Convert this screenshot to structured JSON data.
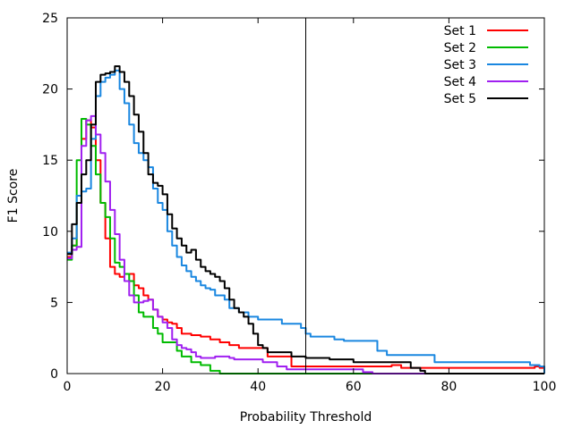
{
  "chart_data": {
    "type": "line",
    "title": "",
    "xlabel": "Probability Threshold",
    "ylabel": "F1 Score",
    "xlim": [
      0,
      100
    ],
    "ylim": [
      0,
      25
    ],
    "xticks": [
      "0",
      "20",
      "40",
      "60",
      "80",
      "100"
    ],
    "yticks": [
      "0",
      "5",
      "10",
      "15",
      "20",
      "25"
    ],
    "grid": false,
    "legend_position": "top-right",
    "vertical_reference_x": 50,
    "series": [
      {
        "name": "Set 1",
        "color": "#ff0000",
        "points": [
          [
            0,
            8.2
          ],
          [
            1,
            9
          ],
          [
            2,
            12
          ],
          [
            3,
            16.5
          ],
          [
            4,
            17.8
          ],
          [
            5,
            17.3
          ],
          [
            6,
            15
          ],
          [
            7,
            12
          ],
          [
            8,
            9.5
          ],
          [
            9,
            7.5
          ],
          [
            10,
            7
          ],
          [
            11,
            6.8
          ],
          [
            12,
            7
          ],
          [
            13,
            7
          ],
          [
            14,
            6.2
          ],
          [
            15,
            6
          ],
          [
            16,
            5.5
          ],
          [
            17,
            5.2
          ],
          [
            18,
            4.5
          ],
          [
            19,
            4
          ],
          [
            20,
            3.8
          ],
          [
            21,
            3.6
          ],
          [
            22,
            3.5
          ],
          [
            23,
            3.2
          ],
          [
            24,
            2.8
          ],
          [
            26,
            2.7
          ],
          [
            28,
            2.6
          ],
          [
            30,
            2.4
          ],
          [
            32,
            2.2
          ],
          [
            34,
            2
          ],
          [
            36,
            1.8
          ],
          [
            40,
            1.8
          ],
          [
            42,
            1.2
          ],
          [
            45,
            1.2
          ],
          [
            47,
            0.5
          ],
          [
            60,
            0.5
          ],
          [
            68,
            0.6
          ],
          [
            70,
            0.4
          ],
          [
            98,
            0.5
          ],
          [
            99,
            0.4
          ],
          [
            100,
            0
          ]
        ]
      },
      {
        "name": "Set 2",
        "color": "#00bb00",
        "points": [
          [
            0,
            8
          ],
          [
            1,
            9
          ],
          [
            2,
            15
          ],
          [
            3,
            17.9
          ],
          [
            4,
            17.5
          ],
          [
            5,
            16
          ],
          [
            6,
            14
          ],
          [
            7,
            12
          ],
          [
            8,
            11
          ],
          [
            9,
            9.5
          ],
          [
            10,
            7.8
          ],
          [
            11,
            7.5
          ],
          [
            12,
            7
          ],
          [
            13,
            6.5
          ],
          [
            14,
            5.5
          ],
          [
            15,
            4.3
          ],
          [
            16,
            4
          ],
          [
            17,
            4
          ],
          [
            18,
            3.2
          ],
          [
            19,
            2.8
          ],
          [
            20,
            2.2
          ],
          [
            22,
            2.2
          ],
          [
            23,
            1.6
          ],
          [
            24,
            1.2
          ],
          [
            26,
            0.8
          ],
          [
            28,
            0.6
          ],
          [
            30,
            0.2
          ],
          [
            32,
            0
          ],
          [
            100,
            0
          ]
        ]
      },
      {
        "name": "Set 3",
        "color": "#1a87e0",
        "points": [
          [
            0,
            8.5
          ],
          [
            1,
            9.5
          ],
          [
            2,
            12.5
          ],
          [
            3,
            12.8
          ],
          [
            4,
            13
          ],
          [
            5,
            16.5
          ],
          [
            6,
            19.5
          ],
          [
            7,
            20.5
          ],
          [
            8,
            20.8
          ],
          [
            9,
            21
          ],
          [
            10,
            21.3
          ],
          [
            11,
            20
          ],
          [
            12,
            19
          ],
          [
            13,
            17.5
          ],
          [
            14,
            16.2
          ],
          [
            15,
            15.5
          ],
          [
            16,
            15
          ],
          [
            17,
            14.5
          ],
          [
            18,
            13
          ],
          [
            19,
            12
          ],
          [
            20,
            11.5
          ],
          [
            21,
            10
          ],
          [
            22,
            9
          ],
          [
            23,
            8.2
          ],
          [
            24,
            7.6
          ],
          [
            25,
            7.2
          ],
          [
            26,
            6.8
          ],
          [
            27,
            6.5
          ],
          [
            28,
            6.2
          ],
          [
            29,
            6
          ],
          [
            30,
            5.9
          ],
          [
            31,
            5.5
          ],
          [
            32,
            5.5
          ],
          [
            33,
            5.2
          ],
          [
            34,
            4.6
          ],
          [
            36,
            4.3
          ],
          [
            38,
            4
          ],
          [
            40,
            3.8
          ],
          [
            45,
            3.5
          ],
          [
            48,
            3.5
          ],
          [
            49,
            3.2
          ],
          [
            50,
            2.8
          ],
          [
            51,
            2.6
          ],
          [
            56,
            2.4
          ],
          [
            58,
            2.3
          ],
          [
            64,
            2.3
          ],
          [
            65,
            1.6
          ],
          [
            67,
            1.3
          ],
          [
            75,
            1.3
          ],
          [
            77,
            0.8
          ],
          [
            96,
            0.8
          ],
          [
            97,
            0.6
          ],
          [
            99,
            0.5
          ],
          [
            100,
            0
          ]
        ]
      },
      {
        "name": "Set 4",
        "color": "#a020f0",
        "points": [
          [
            0,
            8.1
          ],
          [
            1,
            8.7
          ],
          [
            2,
            8.9
          ],
          [
            3,
            16
          ],
          [
            4,
            17.8
          ],
          [
            5,
            18.1
          ],
          [
            6,
            16.8
          ],
          [
            7,
            15.5
          ],
          [
            8,
            13.5
          ],
          [
            9,
            11.5
          ],
          [
            10,
            9.8
          ],
          [
            11,
            8
          ],
          [
            12,
            6.5
          ],
          [
            13,
            5.5
          ],
          [
            14,
            5
          ],
          [
            15,
            5
          ],
          [
            16,
            5.1
          ],
          [
            17,
            5.2
          ],
          [
            18,
            4.5
          ],
          [
            19,
            4
          ],
          [
            20,
            3.6
          ],
          [
            21,
            3.2
          ],
          [
            22,
            2.4
          ],
          [
            23,
            2
          ],
          [
            24,
            1.8
          ],
          [
            25,
            1.7
          ],
          [
            26,
            1.5
          ],
          [
            27,
            1.2
          ],
          [
            28,
            1.1
          ],
          [
            31,
            1.2
          ],
          [
            34,
            1.1
          ],
          [
            35,
            1
          ],
          [
            40,
            1
          ],
          [
            41,
            0.8
          ],
          [
            44,
            0.5
          ],
          [
            46,
            0.3
          ],
          [
            50,
            0.3
          ],
          [
            60,
            0.3
          ],
          [
            62,
            0.1
          ],
          [
            64,
            0
          ],
          [
            100,
            0
          ]
        ]
      },
      {
        "name": "Set 5",
        "color": "#000000",
        "points": [
          [
            0,
            8.4
          ],
          [
            1,
            10.5
          ],
          [
            2,
            12
          ],
          [
            3,
            14
          ],
          [
            4,
            15
          ],
          [
            5,
            17.5
          ],
          [
            6,
            20.5
          ],
          [
            7,
            21
          ],
          [
            8,
            21.1
          ],
          [
            9,
            21.2
          ],
          [
            10,
            21.6
          ],
          [
            11,
            21.2
          ],
          [
            12,
            20.5
          ],
          [
            13,
            19.5
          ],
          [
            14,
            18.2
          ],
          [
            15,
            17
          ],
          [
            16,
            15.5
          ],
          [
            17,
            14
          ],
          [
            18,
            13.4
          ],
          [
            19,
            13.2
          ],
          [
            20,
            12.6
          ],
          [
            21,
            11.2
          ],
          [
            22,
            10.2
          ],
          [
            23,
            9.5
          ],
          [
            24,
            9
          ],
          [
            25,
            8.5
          ],
          [
            26,
            8.7
          ],
          [
            27,
            8
          ],
          [
            28,
            7.5
          ],
          [
            29,
            7.2
          ],
          [
            30,
            7
          ],
          [
            31,
            6.8
          ],
          [
            32,
            6.5
          ],
          [
            33,
            6
          ],
          [
            34,
            5.2
          ],
          [
            35,
            4.6
          ],
          [
            36,
            4.3
          ],
          [
            37,
            4
          ],
          [
            38,
            3.5
          ],
          [
            39,
            2.8
          ],
          [
            40,
            2
          ],
          [
            41,
            1.8
          ],
          [
            42,
            1.5
          ],
          [
            46,
            1.5
          ],
          [
            47,
            1.2
          ],
          [
            50,
            1.1
          ],
          [
            55,
            1
          ],
          [
            60,
            0.8
          ],
          [
            70,
            0.8
          ],
          [
            72,
            0.4
          ],
          [
            74,
            0.2
          ],
          [
            75,
            0
          ],
          [
            100,
            0
          ]
        ]
      }
    ]
  }
}
